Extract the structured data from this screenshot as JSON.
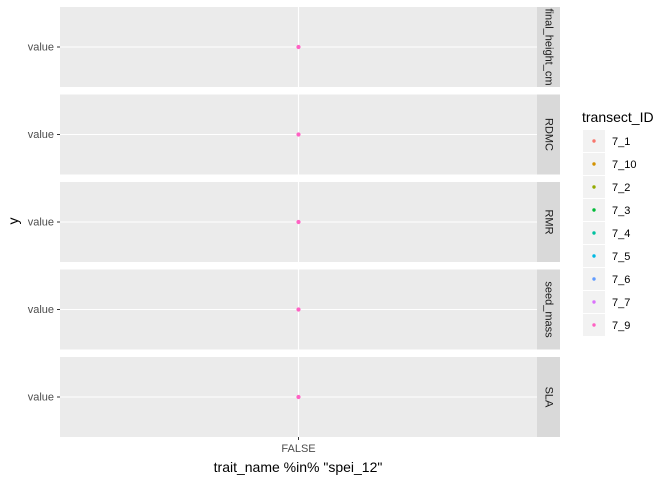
{
  "chart_data": {
    "type": "scatter",
    "facet_by": "row",
    "facets": [
      "final_height_cm",
      "RDMC",
      "RMR",
      "seed_mass",
      "SLA"
    ],
    "x_categories": [
      "FALSE"
    ],
    "y_categories": [
      "value"
    ],
    "xlabel": "trait_name %in% \"spei_12\"",
    "ylabel": "y",
    "grid": true,
    "legend": {
      "title": "transect_ID",
      "placement": "right",
      "entries": [
        {
          "label": "7_1",
          "color": "#F8766D"
        },
        {
          "label": "7_10",
          "color": "#D39200"
        },
        {
          "label": "7_2",
          "color": "#93AA00"
        },
        {
          "label": "7_3",
          "color": "#00BA38"
        },
        {
          "label": "7_4",
          "color": "#00C19F"
        },
        {
          "label": "7_5",
          "color": "#00B9E3"
        },
        {
          "label": "7_6",
          "color": "#619CFF"
        },
        {
          "label": "7_7",
          "color": "#DB72FB"
        },
        {
          "label": "7_9",
          "color": "#FF61C3"
        }
      ]
    },
    "points": [
      {
        "facet": "final_height_cm",
        "x": "FALSE",
        "y": "value",
        "series": "7_9"
      },
      {
        "facet": "RDMC",
        "x": "FALSE",
        "y": "value",
        "series": "7_9"
      },
      {
        "facet": "RMR",
        "x": "FALSE",
        "y": "value",
        "series": "7_9"
      },
      {
        "facet": "seed_mass",
        "x": "FALSE",
        "y": "value",
        "series": "7_9"
      },
      {
        "facet": "SLA",
        "x": "FALSE",
        "y": "value",
        "series": "7_9"
      }
    ]
  }
}
